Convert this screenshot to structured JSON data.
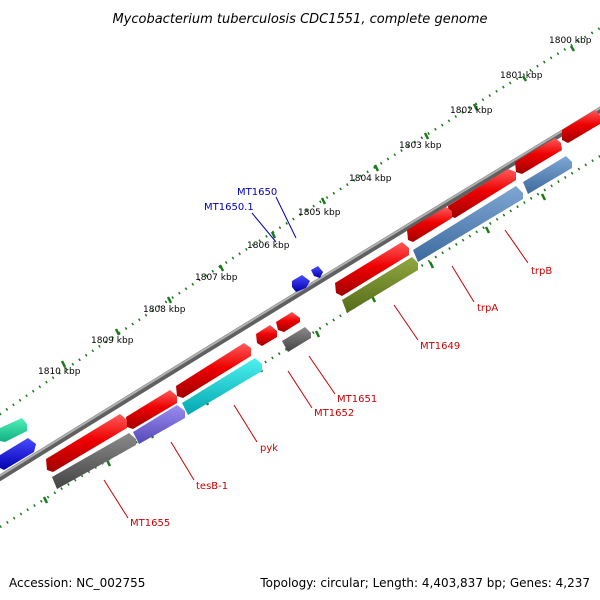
{
  "title": "Mycobacterium tuberculosis CDC1551, complete genome",
  "footer": {
    "accession": "Accession: NC_002755",
    "topology": "Topology: circular; Length: 4,403,837 bp; Genes: 4,237"
  },
  "colors": {
    "backbone": "#8c8c8c",
    "tick": "#1a7a1a",
    "red_gene": "#e00000",
    "gray_gene": "#666666",
    "blue_gene": "#0000ee",
    "label_red": "#cc0000",
    "label_blue": "#0000bb"
  },
  "scale": {
    "kbp_labels": [
      "1800 kbp",
      "1801 kbp",
      "1802 kbp",
      "1803 kbp",
      "1804 kbp",
      "1805 kbp",
      "1806 kbp",
      "1807 kbp",
      "1808 kbp",
      "1809 kbp",
      "1810 kbp"
    ]
  },
  "gene_labels": {
    "mt1650": "MT1650",
    "mt1650_1": "MT1650.1",
    "trpB": "trpB",
    "trpA": "trpA",
    "mt1649": "MT1649",
    "mt1651": "MT1651",
    "mt1652": "MT1652",
    "pyk": "pyk",
    "tesB_1": "tesB-1",
    "mt1655": "MT1655"
  }
}
